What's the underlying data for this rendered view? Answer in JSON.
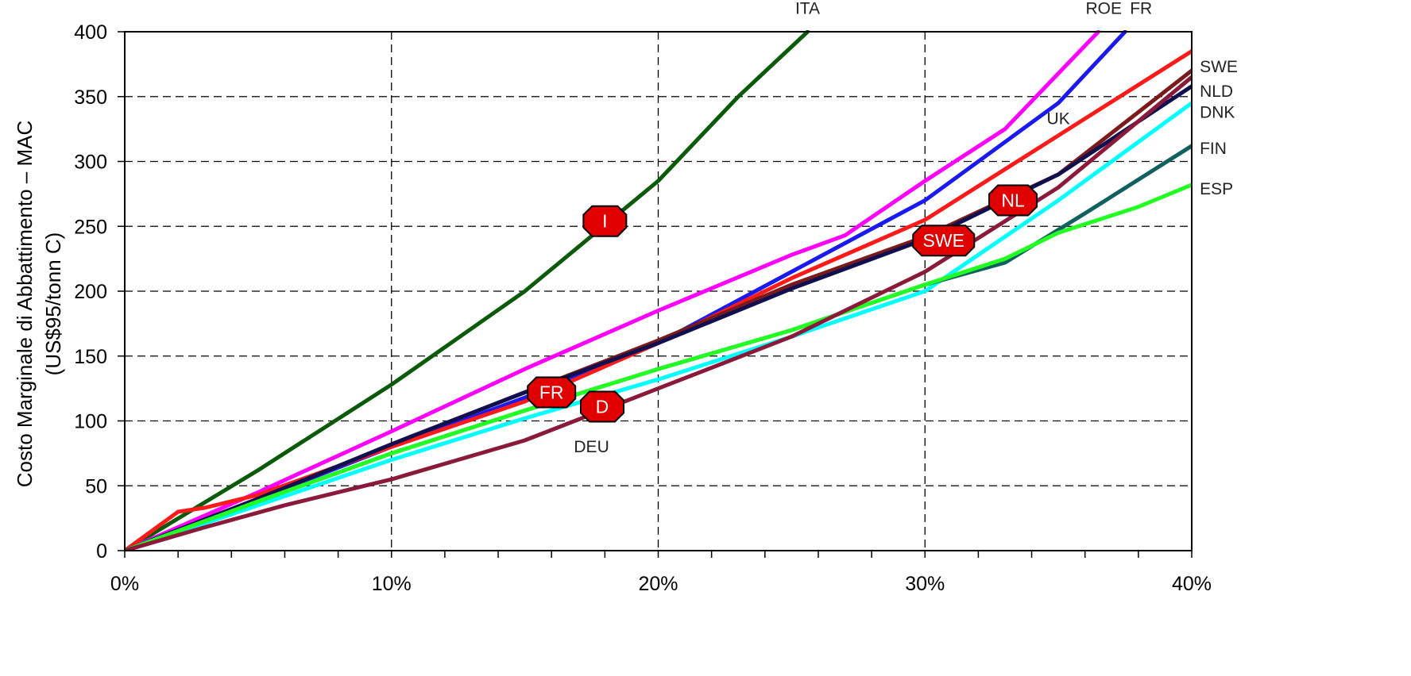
{
  "chart_data": {
    "type": "line",
    "title": "",
    "ylabel": [
      "Costo Marginale di Abbattimento – MAC",
      "(US$95/tonn C)"
    ],
    "xlabel": "",
    "xlim": [
      0,
      40
    ],
    "ylim": [
      0,
      400
    ],
    "x_ticks": [
      {
        "value": 0,
        "label": "0%"
      },
      {
        "value": 10,
        "label": "10%"
      },
      {
        "value": 20,
        "label": "20%"
      },
      {
        "value": 30,
        "label": "30%"
      },
      {
        "value": 40,
        "label": "40%"
      }
    ],
    "y_ticks": [
      {
        "value": 0,
        "label": "0"
      },
      {
        "value": 50,
        "label": "50"
      },
      {
        "value": 100,
        "label": "100"
      },
      {
        "value": 150,
        "label": "150"
      },
      {
        "value": 200,
        "label": "200"
      },
      {
        "value": 250,
        "label": "250"
      },
      {
        "value": 300,
        "label": "300"
      },
      {
        "value": 350,
        "label": "350"
      },
      {
        "value": 400,
        "label": "400"
      }
    ],
    "grid": true,
    "series": [
      {
        "name": "ITA",
        "color": "#0a5a0a",
        "points": [
          [
            0,
            0
          ],
          [
            5,
            62
          ],
          [
            10,
            128
          ],
          [
            15,
            200
          ],
          [
            20,
            285
          ],
          [
            23,
            350
          ],
          [
            25.6,
            400
          ]
        ]
      },
      {
        "name": "ROE",
        "color": "#ff00ff",
        "points": [
          [
            0,
            0
          ],
          [
            5,
            45
          ],
          [
            10,
            92
          ],
          [
            15,
            140
          ],
          [
            20,
            185
          ],
          [
            25,
            228
          ],
          [
            27,
            243
          ],
          [
            30,
            285
          ],
          [
            33,
            325
          ],
          [
            36.5,
            400
          ]
        ]
      },
      {
        "name": "FR",
        "color": "#1a1aee",
        "points": [
          [
            0,
            0
          ],
          [
            5,
            40
          ],
          [
            10,
            80
          ],
          [
            15,
            118
          ],
          [
            20,
            160
          ],
          [
            25,
            215
          ],
          [
            30,
            270
          ],
          [
            35,
            345
          ],
          [
            37.5,
            400
          ]
        ]
      },
      {
        "name": "UK",
        "color": "#ff1a1a",
        "points": [
          [
            0,
            0
          ],
          [
            2,
            30
          ],
          [
            3,
            33
          ],
          [
            5,
            43
          ],
          [
            10,
            80
          ],
          [
            15,
            115
          ],
          [
            20,
            160
          ],
          [
            25,
            210
          ],
          [
            30,
            255
          ],
          [
            35,
            320
          ],
          [
            40,
            385
          ]
        ]
      },
      {
        "name": "SWE",
        "color": "#7a1a1a",
        "points": [
          [
            0,
            0
          ],
          [
            5,
            40
          ],
          [
            10,
            82
          ],
          [
            15,
            122
          ],
          [
            20,
            162
          ],
          [
            25,
            205
          ],
          [
            30,
            242
          ],
          [
            35,
            290
          ],
          [
            40,
            370
          ]
        ]
      },
      {
        "name": "NLD",
        "color": "#101050",
        "points": [
          [
            0,
            0
          ],
          [
            5,
            40
          ],
          [
            10,
            82
          ],
          [
            15,
            122
          ],
          [
            20,
            160
          ],
          [
            25,
            202
          ],
          [
            30,
            240
          ],
          [
            35,
            290
          ],
          [
            40,
            358
          ]
        ]
      },
      {
        "name": "DNK",
        "color": "#00ffff",
        "points": [
          [
            0,
            0
          ],
          [
            5,
            35
          ],
          [
            10,
            70
          ],
          [
            15,
            102
          ],
          [
            20,
            132
          ],
          [
            25,
            165
          ],
          [
            30,
            200
          ],
          [
            35,
            270
          ],
          [
            40,
            345
          ]
        ]
      },
      {
        "name": "FIN",
        "color": "#106060",
        "points": [
          [
            0,
            0
          ],
          [
            5,
            38
          ],
          [
            10,
            75
          ],
          [
            15,
            108
          ],
          [
            20,
            140
          ],
          [
            25,
            170
          ],
          [
            30,
            205
          ],
          [
            33,
            222
          ],
          [
            36,
            260
          ],
          [
            40,
            312
          ]
        ]
      },
      {
        "name": "ESP",
        "color": "#22ff22",
        "points": [
          [
            0,
            0
          ],
          [
            5,
            38
          ],
          [
            10,
            75
          ],
          [
            15,
            108
          ],
          [
            20,
            140
          ],
          [
            25,
            170
          ],
          [
            30,
            205
          ],
          [
            33,
            225
          ],
          [
            35,
            245
          ],
          [
            38,
            265
          ],
          [
            40,
            282
          ]
        ]
      },
      {
        "name": "DEU",
        "color": "#8b1a3a",
        "points": [
          [
            0,
            0
          ],
          [
            3,
            18
          ],
          [
            6,
            35
          ],
          [
            10,
            55
          ],
          [
            15,
            85
          ],
          [
            20,
            125
          ],
          [
            25,
            165
          ],
          [
            30,
            215
          ],
          [
            35,
            280
          ],
          [
            40,
            365
          ]
        ]
      }
    ],
    "series_labels": [
      {
        "text": "ITA",
        "x": 25.6,
        "y": 418
      },
      {
        "text": "ROE",
        "x": 36.7,
        "y": 418
      },
      {
        "text": "FR",
        "x": 38.1,
        "y": 418
      },
      {
        "text": "UK",
        "x": 35.0,
        "y": 333
      },
      {
        "text": "SWE",
        "x": 40.3,
        "y": 373
      },
      {
        "text": "NLD",
        "x": 40.3,
        "y": 354
      },
      {
        "text": "DNK",
        "x": 40.3,
        "y": 338
      },
      {
        "text": "FIN",
        "x": 40.3,
        "y": 310
      },
      {
        "text": "ESP",
        "x": 40.3,
        "y": 279
      },
      {
        "text": "DEU",
        "x": 17.5,
        "y": 80
      }
    ],
    "markers": [
      {
        "text": "I",
        "x": 18.0,
        "y": 254
      },
      {
        "text": "FR",
        "x": 16.0,
        "y": 122
      },
      {
        "text": "D",
        "x": 17.9,
        "y": 111
      },
      {
        "text": "SWE",
        "x": 30.7,
        "y": 239
      },
      {
        "text": "NL",
        "x": 33.3,
        "y": 270
      }
    ]
  }
}
